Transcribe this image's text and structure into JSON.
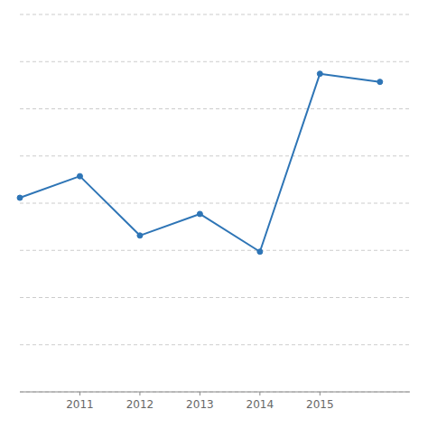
{
  "chart_data": {
    "type": "line",
    "x": [
      2010,
      2011,
      2012,
      2013,
      2014,
      2015,
      2016
    ],
    "values": [
      7.2,
      8.0,
      5.8,
      6.6,
      5.2,
      11.8,
      11.5
    ],
    "color": "#2e75b6",
    "marker": "circle",
    "line_style": "solid",
    "xlim": [
      2010.0,
      2016.5
    ],
    "ylim": [
      0,
      14.0
    ],
    "xticks": [
      2011,
      2012,
      2013,
      2014,
      2015
    ],
    "yticks": [
      0,
      1.75,
      3.5,
      5.25,
      7,
      8.75,
      10.5,
      12.25,
      14
    ],
    "grid": true,
    "tick_labels": "x"
  }
}
